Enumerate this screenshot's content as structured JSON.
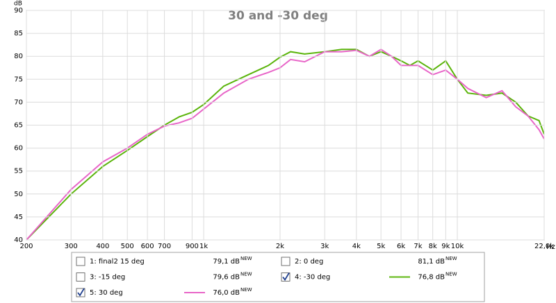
{
  "chart_data": {
    "type": "line",
    "title": "30 and -30 deg",
    "y_label": "dB",
    "x_label": "Hz",
    "log_x": true,
    "grid": true,
    "xlim": [
      200,
      22000
    ],
    "ylim": [
      40,
      90
    ],
    "yticks": [
      40,
      45,
      50,
      55,
      60,
      65,
      70,
      75,
      80,
      85,
      90
    ],
    "xticks": [
      200,
      300,
      400,
      500,
      600,
      700,
      900,
      {
        "value": 1000,
        "label": "1k"
      },
      {
        "value": 2000,
        "label": "2k"
      },
      {
        "value": 3000,
        "label": "3k"
      },
      {
        "value": 4000,
        "label": "4k"
      },
      {
        "value": 5000,
        "label": "5k"
      },
      {
        "value": 6000,
        "label": "6k"
      },
      {
        "value": 7000,
        "label": "7k"
      },
      {
        "value": 8000,
        "label": "8k"
      },
      {
        "value": 9000,
        "label": "9k"
      },
      {
        "value": 10000,
        "label": "10k"
      },
      {
        "value": 22000,
        "label": "22,0k"
      }
    ],
    "x": [
      200,
      300,
      400,
      500,
      600,
      700,
      800,
      900,
      1000,
      1200,
      1500,
      1800,
      2000,
      2200,
      2500,
      3000,
      3500,
      4000,
      4500,
      5000,
      5500,
      6000,
      6500,
      7000,
      8000,
      9000,
      10000,
      11000,
      13000,
      15000,
      17000,
      19000,
      21000,
      22000
    ],
    "series": [
      {
        "name": "1: final2 15 deg",
        "color": "#800080",
        "checked": false,
        "level": "79,1 dB",
        "level_sup": "NEW"
      },
      {
        "name": "2: 0 deg",
        "color": "#000000",
        "checked": false,
        "level": "81,1 dB",
        "level_sup": "NEW"
      },
      {
        "name": "3: -15 deg",
        "color": "#800080",
        "checked": false,
        "level": "79,6 dB",
        "level_sup": "NEW"
      },
      {
        "name": "4: -30 deg",
        "color": "#5ab40a",
        "checked": true,
        "level": "76,8 dB",
        "level_sup": "NEW",
        "values": [
          40,
          50,
          56,
          59.5,
          62.5,
          65,
          66.8,
          67.8,
          69.5,
          73.5,
          76,
          78,
          79.8,
          81,
          80.5,
          81,
          81.5,
          81.5,
          80,
          81,
          80,
          79,
          78,
          79,
          77,
          79,
          75,
          72,
          71.5,
          72,
          70,
          67,
          66,
          63
        ]
      },
      {
        "name": "5: 30 deg",
        "color": "#e865c8",
        "checked": true,
        "level": "76,0 dB",
        "level_sup": "NEW",
        "values": [
          40,
          51,
          57,
          60,
          63,
          64.8,
          65.5,
          66.5,
          68.5,
          72,
          75,
          76.5,
          77.5,
          79.3,
          78.8,
          81,
          81,
          81.3,
          80,
          81.5,
          80,
          78,
          78,
          78,
          76,
          77,
          75,
          73,
          71,
          72.5,
          69,
          67,
          64,
          62
        ]
      }
    ]
  }
}
